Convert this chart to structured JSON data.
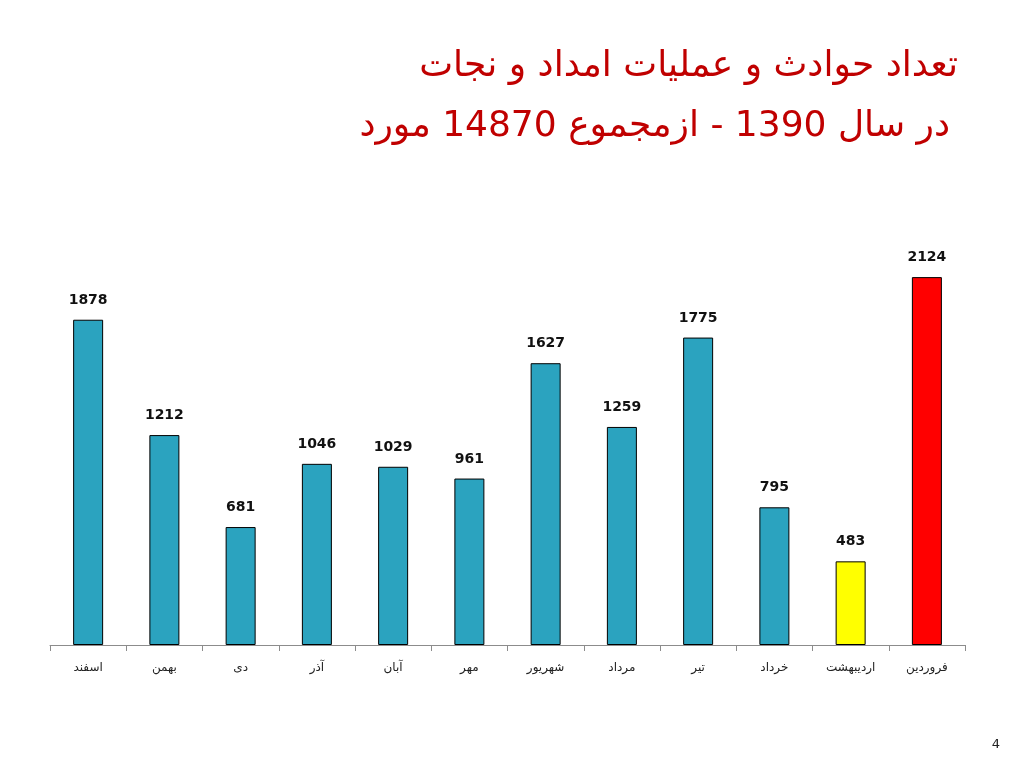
{
  "chart_data": {
    "type": "bar",
    "title": "تعداد حوادث و عملیات امداد و نجات",
    "subtitle": "در سال 1390 - ازمجموع 14870 مورد",
    "categories": [
      "اسفند",
      "بهمن",
      "دی",
      "آذر",
      "آبان",
      "مهر",
      "شهریور",
      "مرداد",
      "تیر",
      "خرداد",
      "اردیبهشت",
      "فروردین"
    ],
    "values": [
      1878,
      1212,
      681,
      1046,
      1029,
      961,
      1627,
      1259,
      1775,
      795,
      483,
      2124
    ],
    "colors": [
      "#2ba3bf",
      "#2ba3bf",
      "#2ba3bf",
      "#2ba3bf",
      "#2ba3bf",
      "#2ba3bf",
      "#2ba3bf",
      "#2ba3bf",
      "#2ba3bf",
      "#2ba3bf",
      "#ffff00",
      "#ff0000"
    ],
    "data_labels": true,
    "annotations": [
      "4"
    ]
  }
}
